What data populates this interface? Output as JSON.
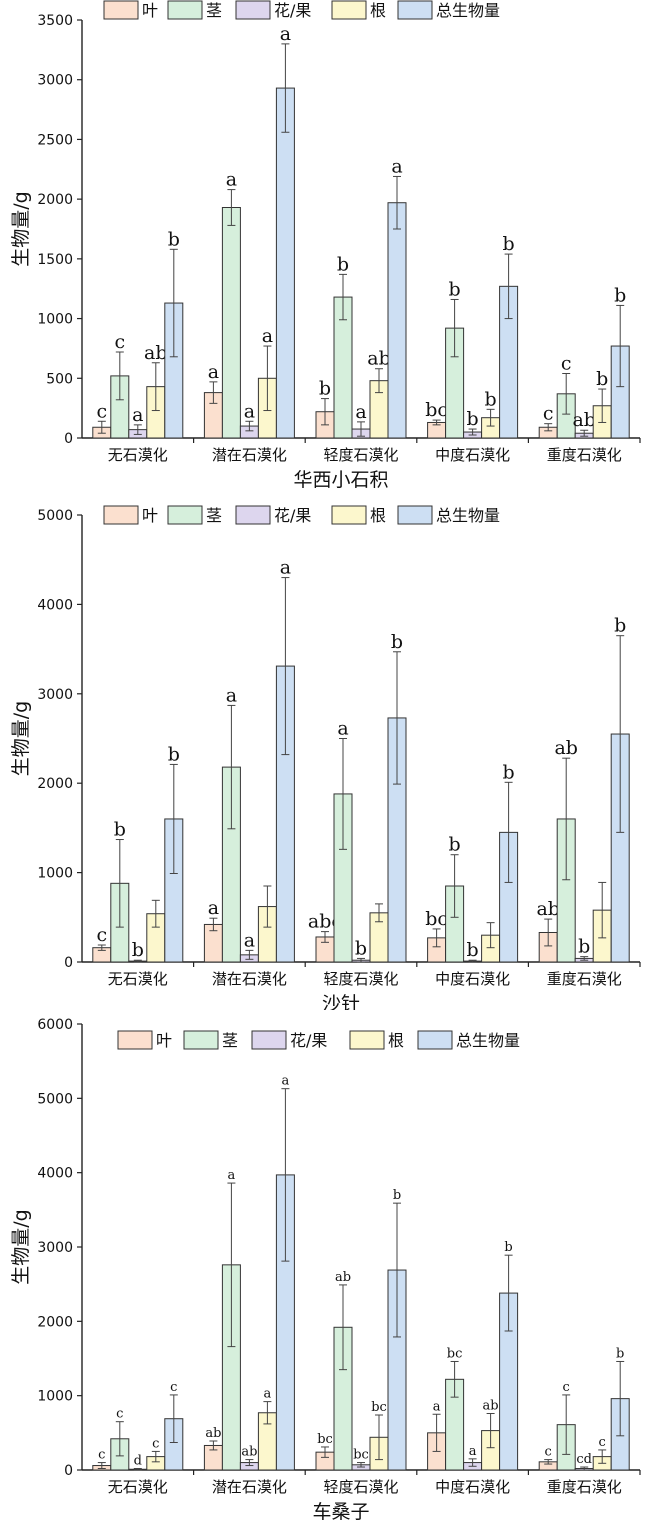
{
  "charts": [
    {
      "type": "bar",
      "title": "华西小石积",
      "ylabel": "生物量/g",
      "ylim": [
        0,
        3500
      ],
      "yticks": [
        0,
        500,
        1000,
        1500,
        2000,
        2500,
        3000,
        3500
      ],
      "categories": [
        "无石漠化",
        "潜在石漠化",
        "轻度石漠化",
        "中度石漠化",
        "重度石漠化"
      ],
      "legend": "top",
      "series": [
        {
          "name": "叶",
          "color": "#fbe0cf",
          "values": [
            90,
            380,
            220,
            130,
            90
          ],
          "err": [
            50,
            90,
            110,
            20,
            30
          ],
          "letters": [
            "c",
            "a",
            "b",
            "bc",
            "c"
          ]
        },
        {
          "name": "茎",
          "color": "#d6efdc",
          "values": [
            520,
            1930,
            1180,
            920,
            370
          ],
          "err": [
            200,
            150,
            190,
            240,
            170
          ],
          "letters": [
            "c",
            "a",
            "b",
            "b",
            "c"
          ]
        },
        {
          "name": "花/果",
          "color": "#ddd6ee",
          "values": [
            70,
            100,
            75,
            50,
            40
          ],
          "err": [
            40,
            40,
            60,
            25,
            25
          ],
          "letters": [
            "a",
            "a",
            "a",
            "b",
            "ab"
          ]
        },
        {
          "name": "根",
          "color": "#fcf7cd",
          "values": [
            430,
            500,
            480,
            170,
            270
          ],
          "err": [
            200,
            270,
            100,
            70,
            140
          ],
          "letters": [
            "ab",
            "a",
            "ab",
            "b",
            "b"
          ]
        },
        {
          "name": "总生物量",
          "color": "#cddff3",
          "values": [
            1130,
            2930,
            1970,
            1270,
            770
          ],
          "err": [
            450,
            370,
            220,
            270,
            340
          ],
          "letters": [
            "b",
            "a",
            "a",
            "b",
            "b"
          ]
        }
      ]
    },
    {
      "type": "bar",
      "title": "沙针",
      "ylabel": "生物量/g",
      "ylim": [
        0,
        5000
      ],
      "yticks": [
        0,
        1000,
        2000,
        3000,
        4000,
        5000
      ],
      "categories": [
        "无石漠化",
        "潜在石漠化",
        "轻度石漠化",
        "中度石漠化",
        "重度石漠化"
      ],
      "legend": "top",
      "series": [
        {
          "name": "叶",
          "color": "#fbe0cf",
          "values": [
            160,
            420,
            280,
            270,
            330
          ],
          "err": [
            30,
            70,
            60,
            100,
            150
          ],
          "letters": [
            "c",
            "a",
            "abc",
            "bc",
            "ab"
          ]
        },
        {
          "name": "茎",
          "color": "#d6efdc",
          "values": [
            880,
            2180,
            1880,
            850,
            1600
          ],
          "err": [
            490,
            690,
            620,
            350,
            680
          ],
          "letters": [
            "b",
            "a",
            "a",
            "b",
            "ab"
          ]
        },
        {
          "name": "花/果",
          "color": "#ddd6ee",
          "values": [
            10,
            80,
            20,
            10,
            40
          ],
          "err": [
            10,
            50,
            20,
            10,
            20
          ],
          "letters": [
            "b",
            "a",
            "b",
            "b",
            "b"
          ]
        },
        {
          "name": "根",
          "color": "#fcf7cd",
          "values": [
            540,
            620,
            550,
            300,
            580
          ],
          "err": [
            150,
            230,
            100,
            140,
            310
          ],
          "letters": [
            "",
            "",
            "",
            "",
            ""
          ]
        },
        {
          "name": "总生物量",
          "color": "#cddff3",
          "values": [
            1600,
            3310,
            2730,
            1450,
            2550
          ],
          "err": [
            610,
            990,
            740,
            560,
            1100
          ],
          "letters": [
            "b",
            "a",
            "b",
            "b",
            "b"
          ]
        }
      ]
    },
    {
      "type": "bar",
      "title": "车桑子",
      "ylabel": "生物量/g",
      "ylim": [
        0,
        6000
      ],
      "yticks": [
        0,
        1000,
        2000,
        3000,
        4000,
        5000,
        6000
      ],
      "categories": [
        "无石漠化",
        "潜在石漠化",
        "轻度石漠化",
        "中度石漠化",
        "重度石漠化"
      ],
      "legend": "top",
      "series": [
        {
          "name": "叶",
          "color": "#fbe0cf",
          "values": [
            60,
            330,
            240,
            500,
            110
          ],
          "err": [
            40,
            60,
            70,
            250,
            30
          ],
          "letters": [
            "c",
            "ab",
            "bc",
            "a",
            "c"
          ]
        },
        {
          "name": "茎",
          "color": "#d6efdc",
          "values": [
            420,
            2760,
            1920,
            1220,
            610
          ],
          "err": [
            230,
            1100,
            570,
            240,
            400
          ],
          "letters": [
            "c",
            "a",
            "ab",
            "bc",
            "c"
          ]
        },
        {
          "name": "花/果",
          "color": "#ddd6ee",
          "values": [
            10,
            100,
            70,
            100,
            20
          ],
          "err": [
            10,
            40,
            30,
            50,
            20
          ],
          "letters": [
            "d",
            "ab",
            "bc",
            "a",
            "cd"
          ]
        },
        {
          "name": "根",
          "color": "#fcf7cd",
          "values": [
            180,
            770,
            440,
            530,
            180
          ],
          "err": [
            70,
            150,
            300,
            230,
            90
          ],
          "letters": [
            "c",
            "a",
            "bc",
            "ab",
            "c"
          ]
        },
        {
          "name": "总生物量",
          "color": "#cddff3",
          "values": [
            690,
            3970,
            2690,
            2380,
            960
          ],
          "err": [
            320,
            1160,
            900,
            510,
            500
          ],
          "letters": [
            "c",
            "a",
            "b",
            "b",
            "b"
          ]
        }
      ]
    }
  ]
}
